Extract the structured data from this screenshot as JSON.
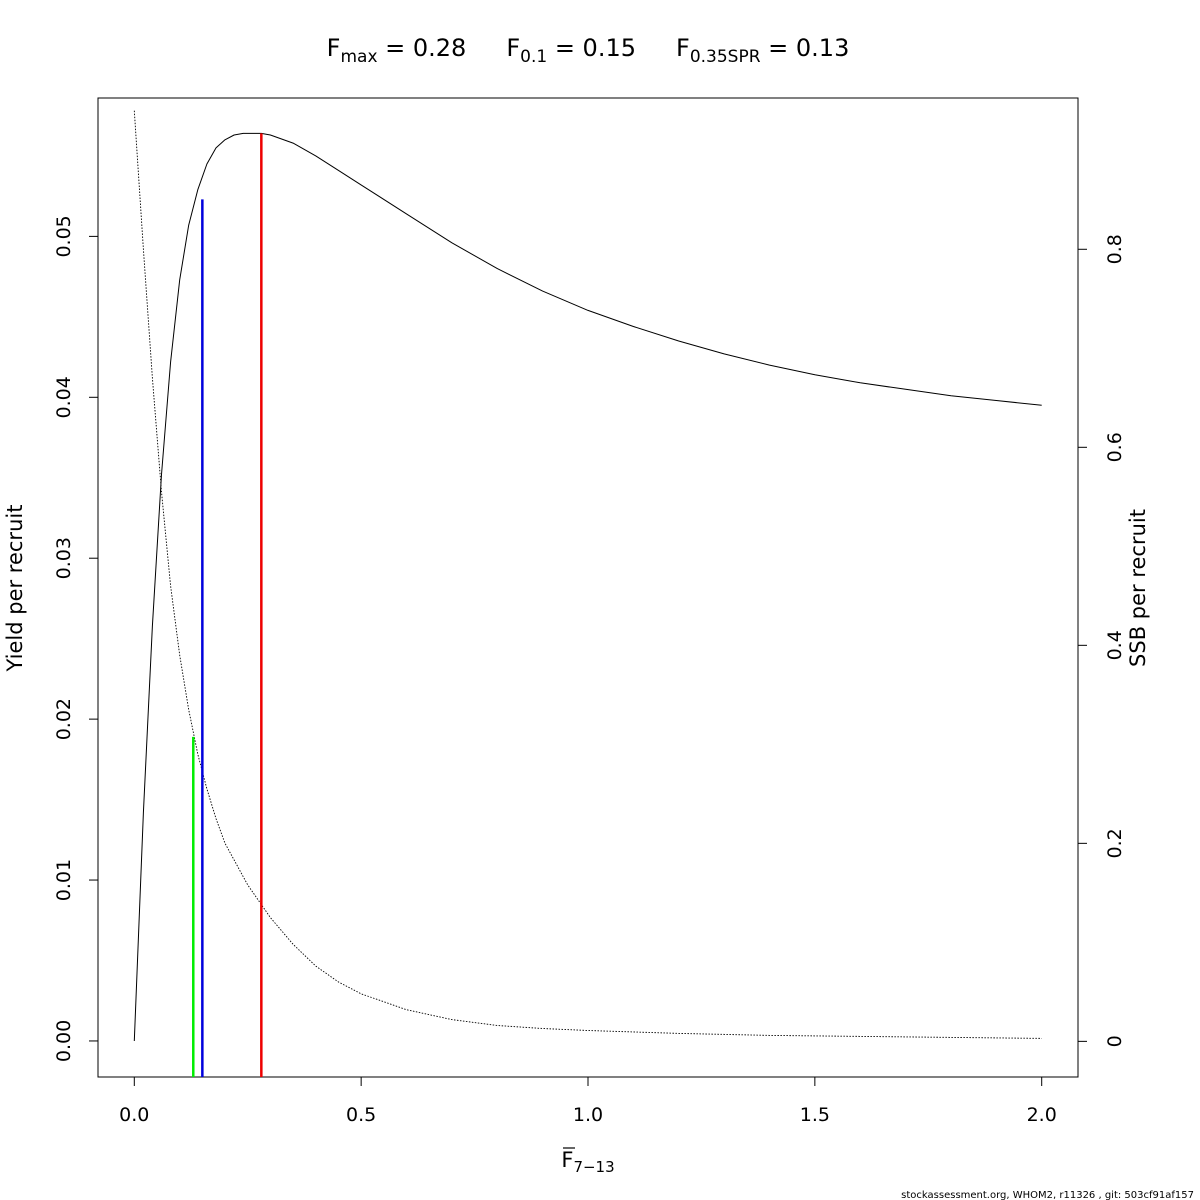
{
  "title_parts": [
    {
      "main": "F",
      "sub": "max",
      "rest": " = 0.28"
    },
    {
      "main": "F",
      "sub": "0.1",
      "rest": " = 0.15"
    },
    {
      "main": "F",
      "sub": "0.35SPR",
      "rest": " = 0.13"
    }
  ],
  "footer": "stockassessment.org, WHOM2, r11326 , git: 503cf91af157",
  "chart_data": {
    "type": "line",
    "xlabel": {
      "main": "F",
      "sub": "7−13",
      "overline": true
    },
    "ylabel": "Yield per recruit",
    "y2label": "SSB per recruit",
    "xlim": [
      -0.08,
      2.08
    ],
    "ylim": [
      -0.00224,
      0.0586
    ],
    "y2lim": [
      -0.036,
      0.9528
    ],
    "xticks": [
      0.0,
      0.5,
      1.0,
      1.5,
      2.0
    ],
    "xtick_labels": [
      "0.0",
      "0.5",
      "1.0",
      "1.5",
      "2.0"
    ],
    "yticks": [
      0.0,
      0.01,
      0.02,
      0.03,
      0.04,
      0.05
    ],
    "ytick_labels": [
      "0.00",
      "0.01",
      "0.02",
      "0.03",
      "0.04",
      "0.05"
    ],
    "y2ticks": [
      0.0,
      0.2,
      0.4,
      0.6,
      0.8
    ],
    "y2tick_labels": [
      "0",
      "0.2",
      "0.4",
      "0.6",
      "0.8"
    ],
    "grid": false,
    "series": [
      {
        "style": "solid",
        "axis": "left",
        "x": [
          0.0,
          0.02,
          0.04,
          0.06,
          0.08,
          0.1,
          0.12,
          0.14,
          0.16,
          0.18,
          0.2,
          0.22,
          0.24,
          0.26,
          0.28,
          0.3,
          0.35,
          0.4,
          0.45,
          0.5,
          0.6,
          0.7,
          0.8,
          0.9,
          1.0,
          1.1,
          1.2,
          1.3,
          1.4,
          1.5,
          1.6,
          1.7,
          1.8,
          1.9,
          2.0
        ],
        "values": [
          0.0,
          0.0142,
          0.0258,
          0.0352,
          0.0422,
          0.0473,
          0.0507,
          0.0529,
          0.0545,
          0.0555,
          0.056,
          0.0563,
          0.0564,
          0.0564,
          0.0564,
          0.0563,
          0.0558,
          0.055,
          0.0541,
          0.0532,
          0.0514,
          0.0496,
          0.048,
          0.0466,
          0.0454,
          0.0444,
          0.0435,
          0.0427,
          0.042,
          0.0414,
          0.0409,
          0.0405,
          0.0401,
          0.0398,
          0.0395
        ]
      },
      {
        "style": "dotted",
        "axis": "right",
        "x": [
          0.0,
          0.02,
          0.04,
          0.06,
          0.08,
          0.1,
          0.12,
          0.14,
          0.16,
          0.18,
          0.2,
          0.25,
          0.3,
          0.35,
          0.4,
          0.45,
          0.5,
          0.6,
          0.7,
          0.8,
          0.9,
          1.0,
          1.2,
          1.4,
          1.6,
          1.8,
          2.0
        ],
        "values": [
          0.94,
          0.8,
          0.67,
          0.555,
          0.46,
          0.39,
          0.335,
          0.29,
          0.255,
          0.225,
          0.2,
          0.158,
          0.125,
          0.098,
          0.076,
          0.06,
          0.048,
          0.032,
          0.022,
          0.016,
          0.013,
          0.011,
          0.008,
          0.006,
          0.005,
          0.004,
          0.003
        ]
      }
    ],
    "reference_lines": [
      {
        "name": "F0.35SPR",
        "x": 0.13,
        "y_top": 0.0189,
        "color": "#00ee00"
      },
      {
        "name": "F0.1",
        "x": 0.15,
        "y_top": 0.0523,
        "color": "#0000dd"
      },
      {
        "name": "Fmax",
        "x": 0.28,
        "y_top": 0.0564,
        "color": "#ee0000"
      }
    ]
  }
}
